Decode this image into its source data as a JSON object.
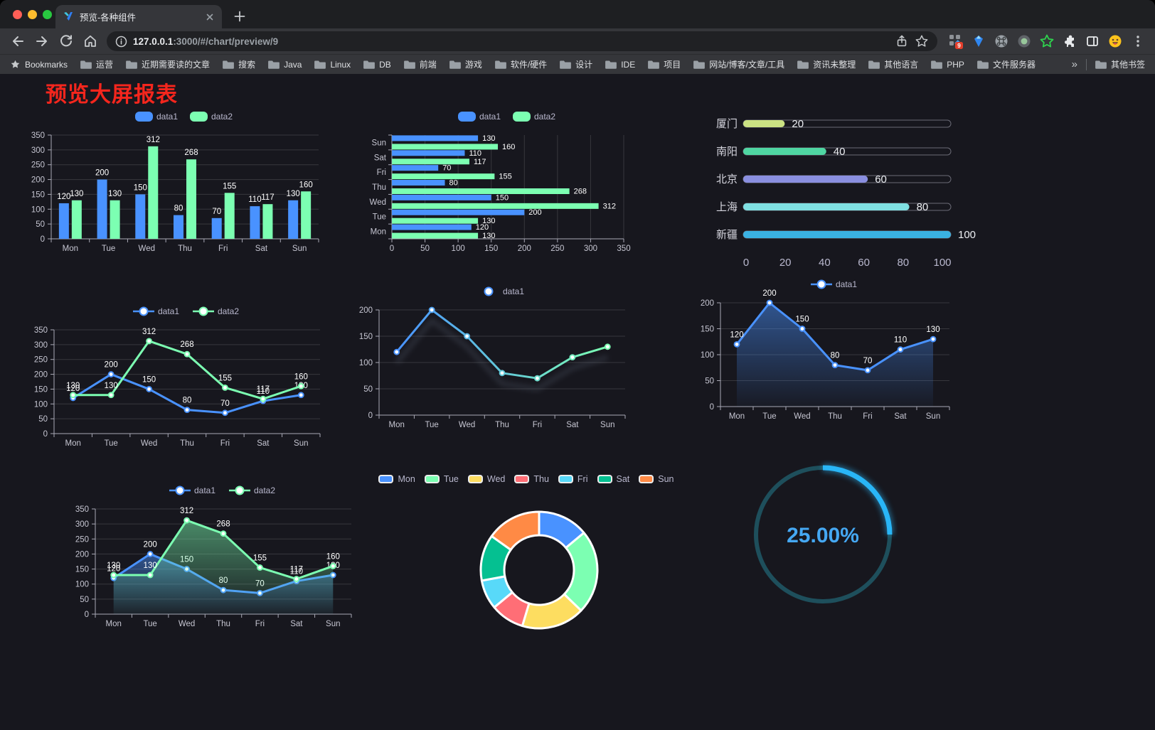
{
  "browser": {
    "tab": {
      "title": "预览-各种组件"
    },
    "url": {
      "host": "127.0.0.1",
      "rest": ":3000/#/chart/preview/9"
    },
    "bookmarks_label": "Bookmarks",
    "bookmarks": [
      "运营",
      "近期需要读的文章",
      "搜索",
      "Java",
      "Linux",
      "DB",
      "前端",
      "游戏",
      "软件/硬件",
      "设计",
      "IDE",
      "项目",
      "网站/博客/文章/工具",
      "资讯未整理",
      "其他语言",
      "PHP",
      "文件服务器"
    ],
    "overflow_chevron": "»",
    "other_bookmarks": "其他书签",
    "extension_badge": "9"
  },
  "page": {
    "title": "预览大屏报表",
    "title_color": "#f5261d"
  },
  "chart_data": [
    {
      "type": "bar",
      "categories": [
        "Mon",
        "Tue",
        "Wed",
        "Thu",
        "Fri",
        "Sat",
        "Sun"
      ],
      "series": [
        {
          "name": "data1",
          "color": "#4992ff",
          "values": [
            120,
            200,
            150,
            80,
            70,
            110,
            130
          ]
        },
        {
          "name": "data2",
          "color": "#7cffb2",
          "values": [
            130,
            130,
            312,
            268,
            155,
            117,
            160
          ]
        }
      ],
      "ylim": [
        0,
        350
      ],
      "ytick_step": 50,
      "grid": true,
      "value_labels": true,
      "legend_position": "top"
    },
    {
      "type": "hbar",
      "categories": [
        "Mon",
        "Tue",
        "Wed",
        "Thu",
        "Fri",
        "Sat",
        "Sun"
      ],
      "series": [
        {
          "name": "data1",
          "color": "#4992ff",
          "values": [
            120,
            200,
            150,
            80,
            70,
            110,
            130
          ]
        },
        {
          "name": "data2",
          "color": "#7cffb2",
          "values": [
            130,
            130,
            312,
            268,
            155,
            117,
            160
          ]
        }
      ],
      "xlim": [
        0,
        350
      ],
      "xtick_step": 50,
      "grid": true,
      "value_labels": true,
      "legend_position": "top"
    },
    {
      "type": "progress",
      "max": 100,
      "xticks": [
        0,
        20,
        40,
        60,
        80,
        100
      ],
      "rows": [
        {
          "label": "厦门",
          "value": 20,
          "color": "#cbe283"
        },
        {
          "label": "南阳",
          "value": 40,
          "color": "#4fd6a2"
        },
        {
          "label": "北京",
          "value": 60,
          "color": "#8a8fe0"
        },
        {
          "label": "上海",
          "value": 80,
          "color": "#7fe0e2"
        },
        {
          "label": "新疆",
          "value": 100,
          "color": "#3ab1e2"
        }
      ]
    },
    {
      "type": "line",
      "categories": [
        "Mon",
        "Tue",
        "Wed",
        "Thu",
        "Fri",
        "Sat",
        "Sun"
      ],
      "series": [
        {
          "name": "data1",
          "color": "#4992ff",
          "values": [
            120,
            200,
            150,
            80,
            70,
            110,
            130
          ]
        },
        {
          "name": "data2",
          "color": "#7cffb2",
          "values": [
            130,
            130,
            312,
            268,
            155,
            117,
            160
          ]
        }
      ],
      "ylim": [
        0,
        350
      ],
      "ytick_step": 50,
      "value_labels": true,
      "legend_position": "top"
    },
    {
      "type": "line",
      "categories": [
        "Mon",
        "Tue",
        "Wed",
        "Thu",
        "Fri",
        "Sat",
        "Sun"
      ],
      "series": [
        {
          "name": "data1",
          "gradient": [
            "#4992ff",
            "#7cffb2"
          ],
          "color": "#4992ff",
          "values": [
            120,
            200,
            150,
            80,
            70,
            110,
            130
          ]
        }
      ],
      "ylim": [
        0,
        200
      ],
      "ytick_step": 50,
      "value_labels": false,
      "shadow": true,
      "legend_position": "top"
    },
    {
      "type": "line",
      "categories": [
        "Mon",
        "Tue",
        "Wed",
        "Thu",
        "Fri",
        "Sat",
        "Sun"
      ],
      "series": [
        {
          "name": "data1",
          "color": "#4992ff",
          "area": true,
          "values": [
            120,
            200,
            150,
            80,
            70,
            110,
            130
          ]
        }
      ],
      "ylim": [
        0,
        200
      ],
      "ytick_step": 50,
      "value_labels": true,
      "legend_position": "top"
    },
    {
      "type": "line",
      "categories": [
        "Mon",
        "Tue",
        "Wed",
        "Thu",
        "Fri",
        "Sat",
        "Sun"
      ],
      "series": [
        {
          "name": "data1",
          "color": "#4992ff",
          "area": true,
          "values": [
            120,
            200,
            150,
            80,
            70,
            110,
            130
          ]
        },
        {
          "name": "data2",
          "color": "#7cffb2",
          "area": true,
          "values": [
            130,
            130,
            312,
            268,
            155,
            117,
            160
          ]
        }
      ],
      "ylim": [
        0,
        350
      ],
      "ytick_step": 50,
      "value_labels": true,
      "legend_position": "top"
    },
    {
      "type": "donut",
      "categories": [
        "Mon",
        "Tue",
        "Wed",
        "Thu",
        "Fri",
        "Sat",
        "Sun"
      ],
      "values": [
        120,
        200,
        150,
        80,
        70,
        110,
        130
      ],
      "colors": [
        "#4992ff",
        "#7cffb2",
        "#fddd60",
        "#ff6e76",
        "#58d9f9",
        "#05c091",
        "#ff8a45"
      ],
      "legend_position": "top"
    },
    {
      "type": "gauge",
      "value": 25,
      "label": "25.00%",
      "color": "#29b6f7",
      "track_color": "#1e4f5c",
      "text_color": "#45a8f3"
    }
  ]
}
